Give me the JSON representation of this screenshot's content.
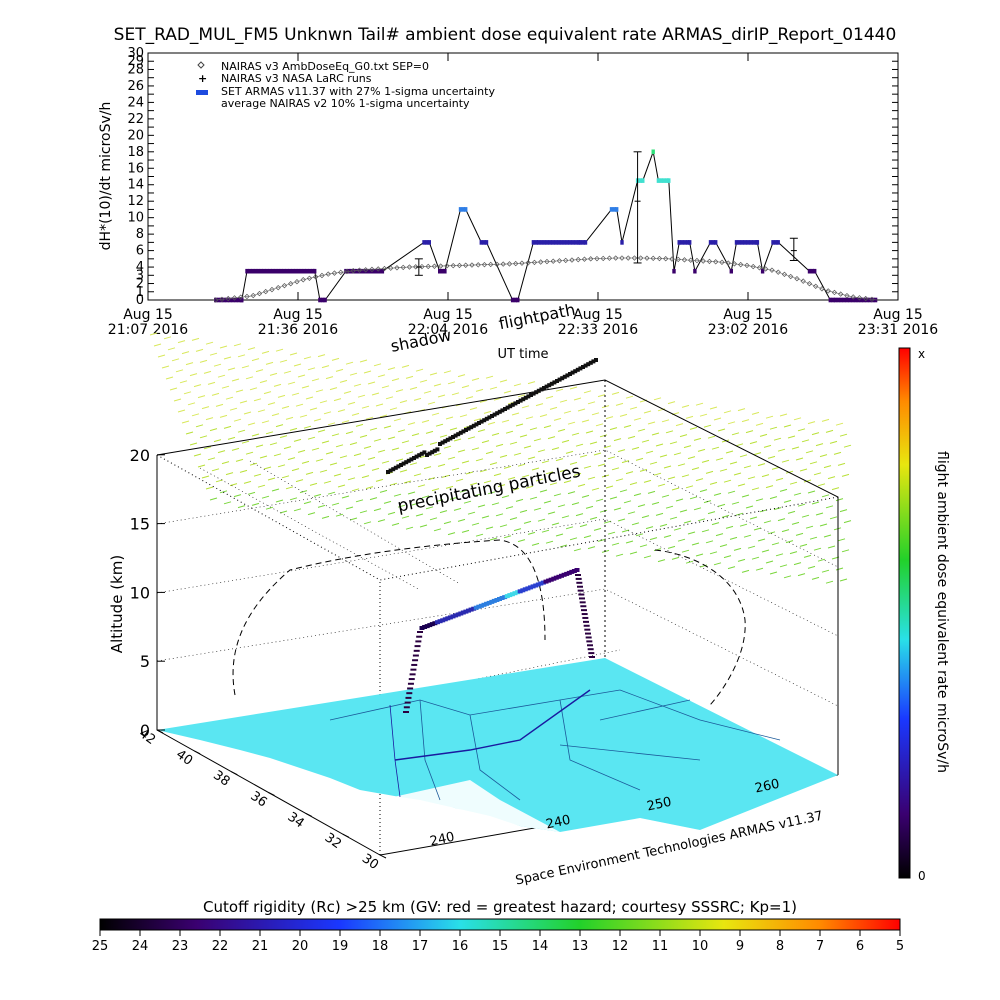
{
  "title": "SET_RAD_MUL_FM5 Unknwn Tail#  ambient dose equivalent rate ARMAS_dirIP_Report_01440",
  "colors": {
    "nairas_v3": "#555555",
    "armas_low": "#3a006a",
    "armas_mid": "#2a1fa8",
    "armas_high": "#2f7ee6",
    "armas_top": "#40e0d0",
    "armas_peak": "#2fe07a",
    "ground": "#5ae6f2",
    "flight_path": "#111111"
  },
  "top_chart": {
    "ylabel": "dH*(10)/dt microSv/h",
    "xlabel": "UT time",
    "y_ticks": [
      "0",
      "1",
      "2",
      "3",
      "4",
      "6",
      "8",
      "10",
      "12",
      "14",
      "16",
      "18",
      "20",
      "22",
      "24",
      "26",
      "28",
      "29",
      "30"
    ],
    "x_ticks": [
      {
        "line1": "Aug 15",
        "line2": "21:07 2016"
      },
      {
        "line1": "Aug 15",
        "line2": "21:36 2016"
      },
      {
        "line1": "Aug 15",
        "line2": "22:04 2016"
      },
      {
        "line1": "Aug 15",
        "line2": "22:33 2016"
      },
      {
        "line1": "Aug 15",
        "line2": "23:02 2016"
      },
      {
        "line1": "Aug 15",
        "line2": "23:31 2016"
      }
    ],
    "legend": [
      {
        "label": "NAIRAS v3 AmbDoseEq_G0.txt SEP=0",
        "symbol": "diamond"
      },
      {
        "label": "NAIRAS v3 NASA LaRC runs",
        "symbol": "plus"
      },
      {
        "label": "SET ARMAS v11.37 with 27% 1-sigma uncertainty",
        "symbol": "dot"
      },
      {
        "label": "average NAIRAS v2 10% 1-sigma uncertainty",
        "symbol": "none"
      }
    ]
  },
  "chart_data": [
    {
      "type": "line",
      "title": "SET_RAD_MUL_FM5 Unknwn Tail#  ambient dose equivalent rate ARMAS_dirIP_Report_01440",
      "xlabel": "UT time",
      "ylabel": "dH*(10)/dt microSv/h",
      "ylim": [
        0,
        30
      ],
      "xlim_minutes": [
        0,
        144
      ],
      "x_tick_labels": [
        "21:07",
        "21:36",
        "22:04",
        "22:33",
        "23:02",
        "23:31"
      ],
      "series": [
        {
          "name": "SET ARMAS v11.37 with 27% 1-sigma uncertainty",
          "x_minutes": [
            13,
            18,
            19,
            32,
            33,
            34,
            38,
            39,
            44,
            45,
            53,
            54,
            56,
            57,
            60,
            61,
            64,
            65,
            70,
            71,
            74,
            75,
            83,
            84,
            89,
            90,
            91,
            94,
            95,
            97,
            98,
            100,
            101,
            102,
            104,
            105,
            108,
            109,
            112,
            113,
            117,
            118,
            120,
            121,
            127,
            128,
            131,
            132,
            140
          ],
          "values": [
            0,
            0,
            3.5,
            3.5,
            0,
            0,
            3.5,
            3.5,
            3.5,
            3.5,
            7,
            7,
            3.5,
            3.5,
            11,
            11,
            7,
            7,
            0,
            0,
            7,
            7,
            7,
            7,
            11,
            11,
            7,
            14.5,
            14.5,
            18,
            14.5,
            14.5,
            3.5,
            7,
            7,
            3.5,
            7,
            7,
            3.5,
            7,
            7,
            3.5,
            7,
            7,
            3.5,
            3.5,
            0,
            0,
            0
          ]
        },
        {
          "name": "NAIRAS v3 AmbDoseEq_G0.txt SEP=0",
          "x_minutes": [
            13,
            20,
            25,
            30,
            35,
            40,
            45,
            50,
            55,
            60,
            65,
            70,
            75,
            80,
            85,
            90,
            95,
            100,
            105,
            110,
            115,
            120,
            125,
            130,
            135,
            140
          ],
          "values": [
            0,
            0.5,
            1.5,
            2.5,
            3.2,
            3.6,
            3.8,
            4,
            4.1,
            4.2,
            4.3,
            4.4,
            4.6,
            4.8,
            5,
            5.1,
            5.1,
            5,
            4.8,
            4.6,
            4.2,
            3.6,
            2.5,
            1.2,
            0.4,
            0
          ]
        },
        {
          "name": "NAIRAS v3 NASA LaRC runs",
          "x_minutes": [
            52,
            94,
            124
          ],
          "values": [
            4,
            12,
            6
          ],
          "err_low": [
            3,
            4.5,
            4.8
          ],
          "err_high": [
            5,
            18,
            7.5
          ]
        }
      ]
    },
    {
      "type": "scatter",
      "subtype": "3d flight track",
      "ylabel": "Altitude (km)",
      "z_ticks": [
        "0",
        "5",
        "10",
        "15",
        "20"
      ],
      "lat_ticks": [
        "42",
        "40",
        "38",
        "36",
        "34",
        "32",
        "30"
      ],
      "lon_ticks": [
        "240",
        "240",
        "250",
        "260"
      ],
      "caption": "Space Environment Technologies ARMAS v11.37",
      "labels": [
        "shadow",
        "flightpath",
        "precipitating particles"
      ]
    }
  ],
  "colorbar_right": {
    "title": "flight ambient dose equivalent rate microSv/h",
    "top": "x",
    "bottom": "0"
  },
  "colorbar_bottom": {
    "title": "Cutoff rigidity (Rc) >25 km (GV: red = greatest hazard; courtesy SSSRC; Kp=1)",
    "ticks": [
      "25",
      "24",
      "23",
      "22",
      "21",
      "20",
      "19",
      "18",
      "17",
      "16",
      "15",
      "14",
      "13",
      "12",
      "11",
      "10",
      "9",
      "8",
      "7",
      "6",
      "5"
    ]
  }
}
